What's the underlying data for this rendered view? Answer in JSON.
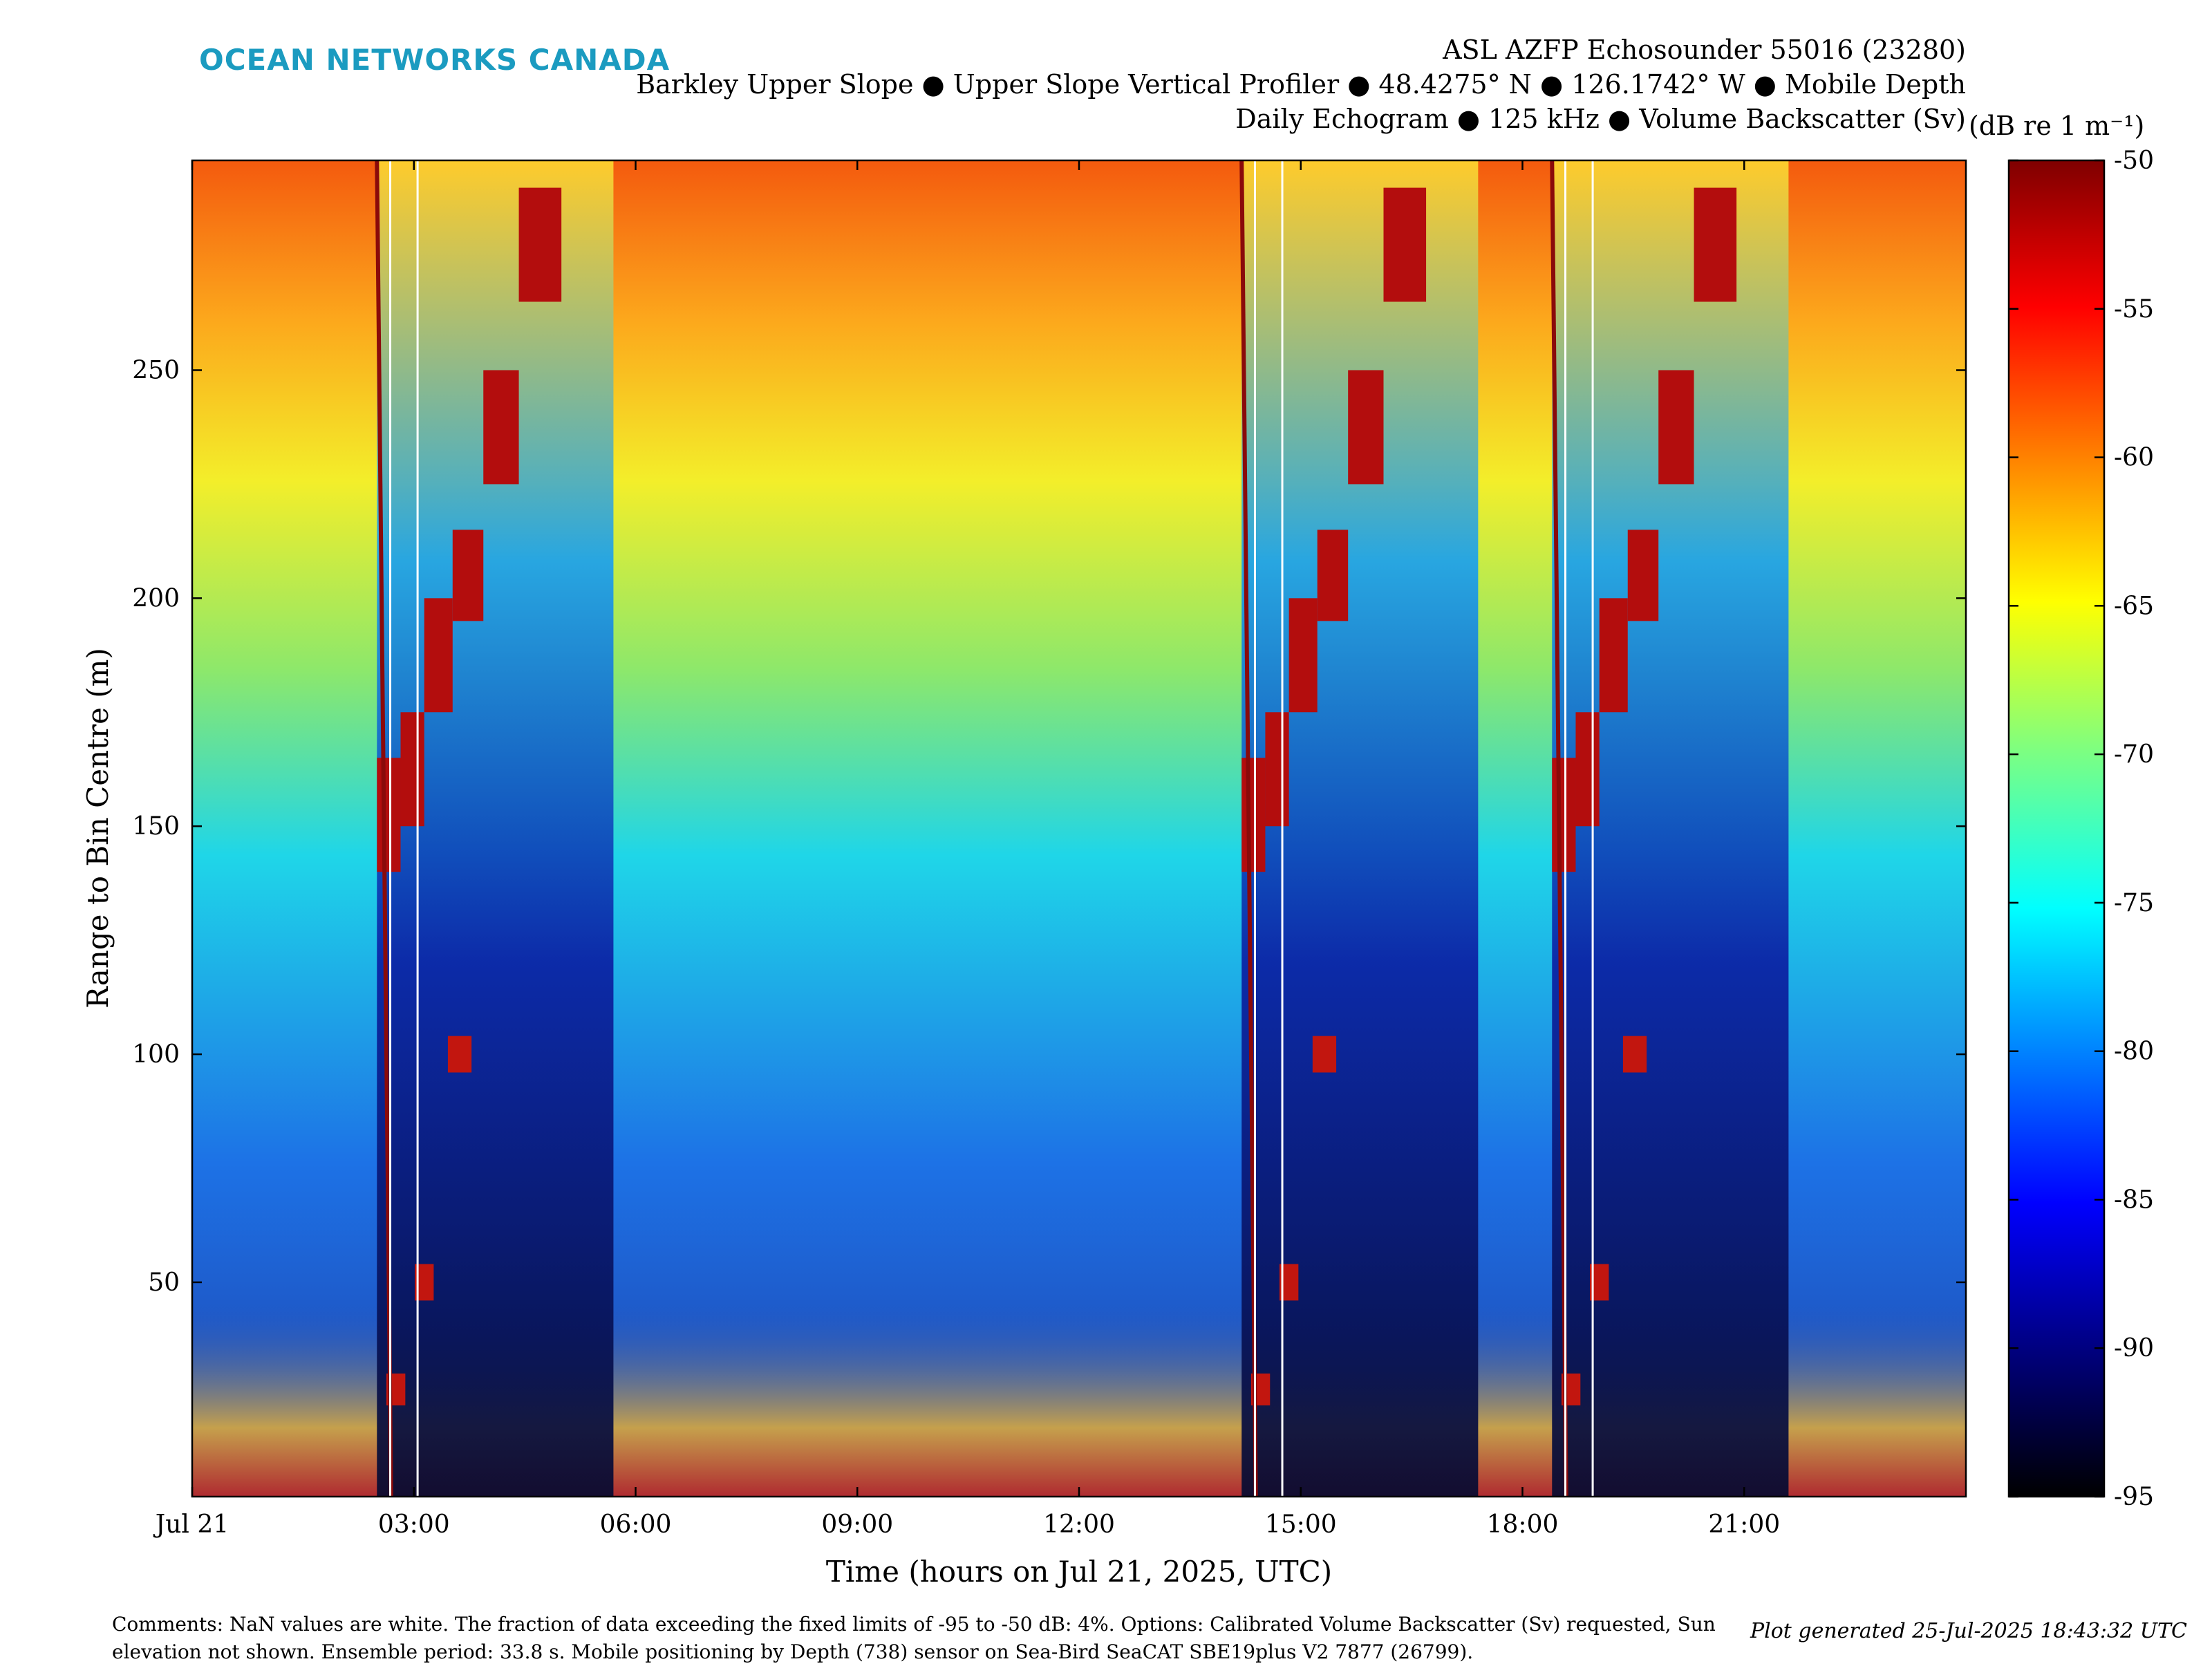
{
  "brand": "OCEAN NETWORKS CANADA",
  "title_lines": [
    "ASL AZFP Echosounder 55016 (23280)",
    "Barkley Upper Slope ● Upper Slope Vertical Profiler ● 48.4275° N ● 126.1742° W ● Mobile Depth",
    "Daily Echogram ● 125 kHz ● Volume Backscatter (Sv)"
  ],
  "colorbar_unit": "(dB re 1 m⁻¹)",
  "footer_comments": "Comments: NaN values are white. The fraction of data exceeding the fixed limits of -95 to -50 dB: 4%. Options: Calibrated Volume Backscatter (Sv) requested, Sun elevation not shown. Ensemble period: 33.8 s. Mobile positioning by Depth (738) sensor on Sea-Bird SeaCAT SBE19plus V2 7877 (26799).",
  "plot_generated": "Plot generated 25-Jul-2025 18:43:32 UTC",
  "chart_data": {
    "type": "heatmap",
    "xlabel": "Time (hours on Jul 21, 2025, UTC)",
    "ylabel": "Range to Bin Centre (m)",
    "xlim": [
      0,
      24
    ],
    "ylim": [
      3,
      296
    ],
    "x_ticks": [
      {
        "value": 0,
        "label": "Jul 21"
      },
      {
        "value": 3,
        "label": "03:00"
      },
      {
        "value": 6,
        "label": "06:00"
      },
      {
        "value": 9,
        "label": "09:00"
      },
      {
        "value": 12,
        "label": "12:00"
      },
      {
        "value": 15,
        "label": "15:00"
      },
      {
        "value": 18,
        "label": "18:00"
      },
      {
        "value": 21,
        "label": "21:00"
      }
    ],
    "y_ticks": [
      50,
      100,
      150,
      200,
      250
    ],
    "colorbar": {
      "min": -95,
      "max": -50,
      "ticks": [
        -50,
        -55,
        -60,
        -65,
        -70,
        -75,
        -80,
        -85,
        -90,
        -95
      ],
      "colormap": [
        "#000000",
        "#00007f",
        "#0000ff",
        "#007fff",
        "#00ffff",
        "#7fff7f",
        "#ffff00",
        "#ff7f00",
        "#ff0000",
        "#7f0000"
      ]
    },
    "nan_color": "#ffffff",
    "profiles": [
      {
        "start_hour": 2.5,
        "end_hour": 5.7
      },
      {
        "start_hour": 14.2,
        "end_hour": 17.4
      },
      {
        "start_hour": 18.4,
        "end_hour": 21.6
      }
    ]
  }
}
